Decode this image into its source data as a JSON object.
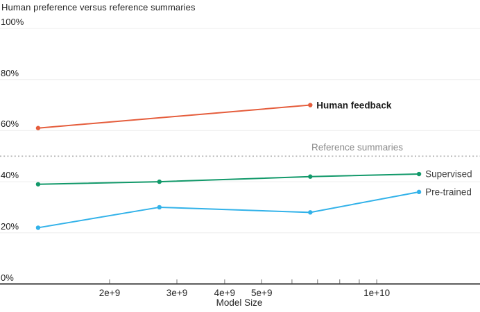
{
  "chart_data": {
    "type": "line",
    "title": "Human preference versus reference summaries",
    "xlabel": "Model Size",
    "x_scale": "log",
    "ylim": [
      0,
      100
    ],
    "grid": "horizontal",
    "legend_position": "line-end-labels",
    "y_ticks": [
      {
        "value": 100,
        "label": "100%"
      },
      {
        "value": 80,
        "label": "80%"
      },
      {
        "value": 60,
        "label": "60%"
      },
      {
        "value": 40,
        "label": "40%"
      },
      {
        "value": 20,
        "label": "20%"
      },
      {
        "value": 0,
        "label": "0%"
      }
    ],
    "x_minor_ticks": [
      2000000000.0,
      3000000000.0,
      4000000000.0,
      5000000000.0,
      6000000000.0,
      7000000000.0,
      8000000000.0,
      9000000000.0,
      10000000000.0
    ],
    "x_labeled_ticks": [
      {
        "x": 2000000000.0,
        "label": "2e+9"
      },
      {
        "x": 3000000000.0,
        "label": "3e+9"
      },
      {
        "x": 4000000000.0,
        "label": "4e+9"
      },
      {
        "x": 5000000000.0,
        "label": "5e+9"
      },
      {
        "x": 10000000000.0,
        "label": "1e+10"
      }
    ],
    "reference_line": {
      "label": "Reference summaries",
      "value": 50
    },
    "series": [
      {
        "name": "Human feedback",
        "color": "#e55d3c",
        "bold_label": true,
        "x": [
          1300000000.0,
          6700000000.0
        ],
        "values": [
          61,
          70
        ]
      },
      {
        "name": "Supervised",
        "color": "#12996a",
        "bold_label": false,
        "x": [
          1300000000.0,
          2700000000.0,
          6700000000.0,
          12900000000.0
        ],
        "values": [
          39,
          40,
          42,
          43
        ]
      },
      {
        "name": "Pre-trained",
        "color": "#32b2e9",
        "bold_label": false,
        "x": [
          1300000000.0,
          2700000000.0,
          6700000000.0,
          12900000000.0
        ],
        "values": [
          22,
          30,
          28,
          36
        ]
      }
    ]
  },
  "colors": {
    "grid": "#ededed",
    "axis": "#3a3a3a",
    "tick": "#8a8a8a",
    "reference_line": "#b6b6b6",
    "text_primary": "#1f1f1f",
    "text_muted": "#8b8b8b"
  }
}
